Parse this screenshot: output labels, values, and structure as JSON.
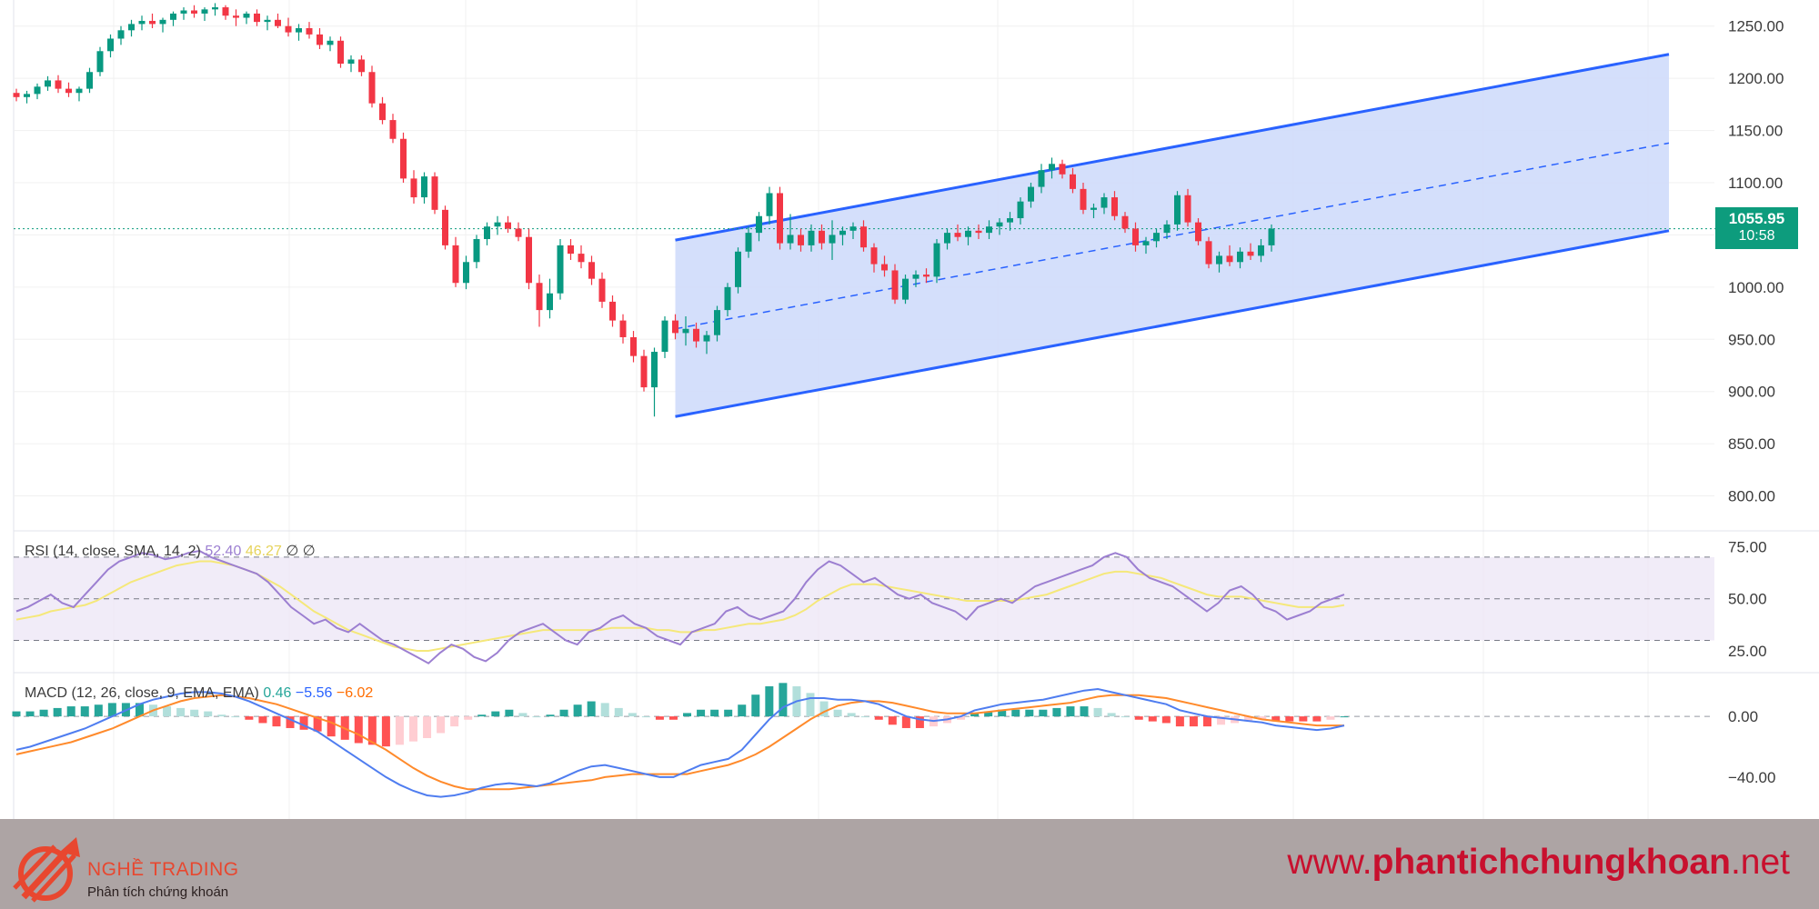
{
  "chart_data": [
    {
      "type": "candlestick",
      "ylim": [
        770,
        1275
      ],
      "y_ticks": [
        "1250.00",
        "1200.00",
        "1150.00",
        "1100.00",
        "1050.00",
        "1000.00",
        "950.00",
        "900.00",
        "850.00",
        "800.00"
      ],
      "last_price": "1055.95",
      "countdown": "10:58",
      "candles": [
        [
          1186,
          1190,
          1178,
          1182
        ],
        [
          1182,
          1188,
          1176,
          1185
        ],
        [
          1185,
          1195,
          1180,
          1192
        ],
        [
          1192,
          1202,
          1188,
          1198
        ],
        [
          1198,
          1203,
          1186,
          1190
        ],
        [
          1190,
          1196,
          1182,
          1186
        ],
        [
          1186,
          1192,
          1178,
          1190
        ],
        [
          1190,
          1210,
          1186,
          1206
        ],
        [
          1206,
          1230,
          1202,
          1226
        ],
        [
          1226,
          1242,
          1220,
          1238
        ],
        [
          1238,
          1250,
          1232,
          1246
        ],
        [
          1246,
          1256,
          1240,
          1252
        ],
        [
          1252,
          1260,
          1246,
          1255
        ],
        [
          1255,
          1262,
          1248,
          1252
        ],
        [
          1252,
          1258,
          1244,
          1256
        ],
        [
          1256,
          1264,
          1250,
          1262
        ],
        [
          1262,
          1268,
          1256,
          1265
        ],
        [
          1265,
          1270,
          1258,
          1262
        ],
        [
          1262,
          1268,
          1255,
          1266
        ],
        [
          1266,
          1272,
          1260,
          1268
        ],
        [
          1268,
          1270,
          1256,
          1260
        ],
        [
          1260,
          1266,
          1250,
          1258
        ],
        [
          1258,
          1264,
          1252,
          1262
        ],
        [
          1262,
          1266,
          1250,
          1254
        ],
        [
          1254,
          1260,
          1246,
          1256
        ],
        [
          1256,
          1262,
          1248,
          1250
        ],
        [
          1250,
          1258,
          1240,
          1244
        ],
        [
          1244,
          1252,
          1236,
          1248
        ],
        [
          1248,
          1254,
          1238,
          1242
        ],
        [
          1242,
          1248,
          1228,
          1232
        ],
        [
          1232,
          1240,
          1226,
          1236
        ],
        [
          1236,
          1240,
          1210,
          1214
        ],
        [
          1214,
          1222,
          1206,
          1218
        ],
        [
          1218,
          1222,
          1202,
          1206
        ],
        [
          1206,
          1212,
          1172,
          1176
        ],
        [
          1176,
          1182,
          1156,
          1160
        ],
        [
          1160,
          1166,
          1138,
          1142
        ],
        [
          1142,
          1148,
          1100,
          1104
        ],
        [
          1104,
          1112,
          1080,
          1086
        ],
        [
          1086,
          1110,
          1080,
          1106
        ],
        [
          1106,
          1110,
          1070,
          1074
        ],
        [
          1074,
          1078,
          1036,
          1040
        ],
        [
          1040,
          1048,
          1000,
          1004
        ],
        [
          1004,
          1030,
          998,
          1024
        ],
        [
          1024,
          1050,
          1018,
          1046
        ],
        [
          1046,
          1062,
          1040,
          1058
        ],
        [
          1058,
          1068,
          1050,
          1062
        ],
        [
          1062,
          1068,
          1052,
          1056
        ],
        [
          1056,
          1062,
          1044,
          1048
        ],
        [
          1048,
          1056,
          998,
          1004
        ],
        [
          1004,
          1012,
          962,
          978
        ],
        [
          978,
          1008,
          970,
          994
        ],
        [
          994,
          1046,
          988,
          1040
        ],
        [
          1040,
          1046,
          1026,
          1032
        ],
        [
          1032,
          1040,
          1018,
          1024
        ],
        [
          1024,
          1030,
          1002,
          1008
        ],
        [
          1008,
          1014,
          980,
          986
        ],
        [
          986,
          992,
          962,
          968
        ],
        [
          968,
          974,
          946,
          952
        ],
        [
          952,
          958,
          928,
          934
        ],
        [
          934,
          940,
          900,
          904
        ],
        [
          904,
          942,
          876,
          938
        ],
        [
          938,
          972,
          932,
          968
        ],
        [
          968,
          974,
          950,
          956
        ],
        [
          956,
          972,
          944,
          960
        ],
        [
          960,
          966,
          942,
          948
        ],
        [
          948,
          958,
          936,
          954
        ],
        [
          954,
          982,
          948,
          978
        ],
        [
          978,
          1004,
          972,
          1000
        ],
        [
          1000,
          1038,
          994,
          1034
        ],
        [
          1034,
          1058,
          1028,
          1052
        ],
        [
          1052,
          1072,
          1044,
          1068
        ],
        [
          1068,
          1096,
          1060,
          1090
        ],
        [
          1090,
          1096,
          1036,
          1042
        ],
        [
          1042,
          1070,
          1036,
          1050
        ],
        [
          1050,
          1056,
          1034,
          1040
        ],
        [
          1040,
          1060,
          1034,
          1054
        ],
        [
          1054,
          1060,
          1036,
          1042
        ],
        [
          1042,
          1064,
          1026,
          1050
        ],
        [
          1050,
          1058,
          1040,
          1054
        ],
        [
          1054,
          1062,
          1046,
          1058
        ],
        [
          1058,
          1064,
          1034,
          1038
        ],
        [
          1038,
          1042,
          1014,
          1022
        ],
        [
          1022,
          1030,
          1010,
          1016
        ],
        [
          1016,
          1022,
          984,
          988
        ],
        [
          988,
          1012,
          984,
          1008
        ],
        [
          1008,
          1016,
          1000,
          1012
        ],
        [
          1012,
          1018,
          1004,
          1010
        ],
        [
          1010,
          1046,
          1004,
          1042
        ],
        [
          1042,
          1056,
          1036,
          1052
        ],
        [
          1052,
          1060,
          1044,
          1048
        ],
        [
          1048,
          1058,
          1040,
          1054
        ],
        [
          1054,
          1060,
          1046,
          1052
        ],
        [
          1052,
          1064,
          1046,
          1058
        ],
        [
          1058,
          1066,
          1050,
          1062
        ],
        [
          1062,
          1072,
          1054,
          1066
        ],
        [
          1066,
          1086,
          1060,
          1082
        ],
        [
          1082,
          1100,
          1076,
          1096
        ],
        [
          1096,
          1118,
          1090,
          1112
        ],
        [
          1112,
          1124,
          1104,
          1118
        ],
        [
          1118,
          1122,
          1104,
          1108
        ],
        [
          1108,
          1114,
          1090,
          1094
        ],
        [
          1094,
          1100,
          1070,
          1074
        ],
        [
          1074,
          1080,
          1066,
          1076
        ],
        [
          1076,
          1090,
          1070,
          1086
        ],
        [
          1086,
          1092,
          1064,
          1068
        ],
        [
          1068,
          1072,
          1052,
          1056
        ],
        [
          1056,
          1062,
          1034,
          1040
        ],
        [
          1040,
          1048,
          1032,
          1044
        ],
        [
          1044,
          1056,
          1038,
          1052
        ],
        [
          1052,
          1064,
          1046,
          1060
        ],
        [
          1060,
          1092,
          1054,
          1088
        ],
        [
          1088,
          1094,
          1058,
          1062
        ],
        [
          1062,
          1066,
          1040,
          1044
        ],
        [
          1044,
          1048,
          1018,
          1022
        ],
        [
          1022,
          1034,
          1014,
          1030
        ],
        [
          1030,
          1040,
          1020,
          1024
        ],
        [
          1024,
          1038,
          1018,
          1034
        ],
        [
          1034,
          1042,
          1026,
          1030
        ],
        [
          1030,
          1046,
          1024,
          1040
        ],
        [
          1040,
          1060,
          1034,
          1056
        ]
      ],
      "channel": {
        "upper": [
          [
            63,
            1045
          ],
          [
            158,
            1223
          ]
        ],
        "lower": [
          [
            63,
            876
          ],
          [
            158,
            1054
          ]
        ],
        "mid": [
          [
            63,
            960
          ],
          [
            158,
            1138
          ]
        ]
      }
    },
    {
      "type": "line",
      "name": "RSI",
      "legend": [
        "RSI (14, close, SMA, 14, 2)",
        "52.40",
        "46.27",
        "∅",
        "∅"
      ],
      "y_ticks": [
        "75.00",
        "50.00",
        "25.00"
      ],
      "ylim": [
        18,
        80
      ],
      "band": [
        30,
        70
      ],
      "rsi": [
        44,
        46,
        49,
        52,
        48,
        46,
        52,
        58,
        64,
        68,
        70,
        72,
        71,
        69,
        70,
        72,
        73,
        70,
        68,
        66,
        64,
        62,
        58,
        52,
        46,
        42,
        38,
        40,
        36,
        34,
        38,
        34,
        30,
        28,
        25,
        22,
        19,
        24,
        28,
        26,
        22,
        20,
        24,
        30,
        34,
        36,
        38,
        34,
        30,
        28,
        34,
        36,
        40,
        42,
        38,
        36,
        32,
        30,
        28,
        34,
        36,
        38,
        44,
        46,
        42,
        40,
        42,
        44,
        50,
        58,
        64,
        68,
        66,
        62,
        58,
        60,
        56,
        52,
        50,
        52,
        48,
        46,
        44,
        40,
        46,
        48,
        50,
        48,
        52,
        56,
        58,
        60,
        62,
        64,
        66,
        70,
        72,
        70,
        64,
        60,
        58,
        56,
        52,
        48,
        44,
        48,
        54,
        56,
        52,
        46,
        44,
        40,
        42,
        44,
        48,
        50,
        52
      ],
      "signal": [
        40,
        41,
        42,
        44,
        45,
        46,
        47,
        49,
        52,
        55,
        58,
        60,
        62,
        64,
        66,
        67,
        68,
        68,
        67,
        66,
        64,
        62,
        59,
        56,
        52,
        48,
        44,
        41,
        38,
        35,
        33,
        31,
        29,
        27,
        26,
        25,
        25,
        26,
        27,
        28,
        29,
        30,
        31,
        32,
        33,
        34,
        35,
        35,
        35,
        35,
        35,
        35,
        36,
        36,
        36,
        36,
        35,
        35,
        34,
        34,
        35,
        35,
        36,
        37,
        38,
        38,
        39,
        40,
        42,
        45,
        49,
        52,
        55,
        57,
        57,
        57,
        56,
        55,
        54,
        53,
        52,
        51,
        50,
        49,
        49,
        49,
        49,
        49,
        50,
        51,
        52,
        54,
        56,
        58,
        60,
        62,
        63,
        63,
        62,
        61,
        60,
        58,
        56,
        54,
        52,
        51,
        51,
        51,
        50,
        49,
        48,
        47,
        46,
        46,
        46,
        46,
        47
      ]
    },
    {
      "type": "bar+line",
      "name": "MACD",
      "legend": [
        "MACD (12, 26, close, 9, EMA, EMA)",
        "0.46",
        "−5.56",
        "−6.02"
      ],
      "y_ticks": [
        "0.00",
        "−40.00"
      ],
      "ylim": [
        -58,
        24
      ],
      "macd": [
        -22,
        -20,
        -17,
        -14,
        -11,
        -8,
        -4,
        0,
        4,
        8,
        11,
        13,
        15,
        16,
        16,
        15,
        13,
        10,
        6,
        2,
        -2,
        -6,
        -10,
        -16,
        -22,
        -28,
        -34,
        -40,
        -45,
        -49,
        -52,
        -53,
        -52,
        -50,
        -47,
        -45,
        -44,
        -45,
        -46,
        -44,
        -40,
        -36,
        -33,
        -32,
        -34,
        -36,
        -38,
        -40,
        -40,
        -36,
        -32,
        -30,
        -28,
        -22,
        -12,
        -2,
        6,
        10,
        12,
        12,
        11,
        11,
        10,
        8,
        4,
        0,
        -2,
        -3,
        -2,
        0,
        4,
        6,
        8,
        9,
        10,
        11,
        13,
        15,
        17,
        18,
        16,
        14,
        12,
        10,
        8,
        4,
        2,
        0,
        -1,
        -2,
        -3,
        -4,
        -6,
        -7,
        -8,
        -9,
        -8,
        -6
      ],
      "signal": [
        -25,
        -23,
        -21,
        -19,
        -17,
        -14,
        -11,
        -8,
        -4,
        0,
        4,
        7,
        10,
        12,
        13,
        14,
        13,
        12,
        10,
        8,
        5,
        2,
        -1,
        -4,
        -8,
        -12,
        -17,
        -22,
        -28,
        -34,
        -39,
        -43,
        -46,
        -48,
        -48,
        -48,
        -48,
        -47,
        -46,
        -45,
        -44,
        -43,
        -42,
        -40,
        -39,
        -38,
        -38,
        -38,
        -38,
        -38,
        -36,
        -34,
        -32,
        -29,
        -25,
        -20,
        -14,
        -8,
        -2,
        3,
        7,
        9,
        10,
        10,
        9,
        7,
        5,
        3,
        2,
        2,
        2,
        3,
        4,
        5,
        6,
        7,
        8,
        9,
        11,
        13,
        14,
        14,
        14,
        13,
        12,
        10,
        8,
        6,
        4,
        2,
        0,
        -2,
        -3,
        -4,
        -5,
        -6,
        -6,
        -6
      ]
    }
  ],
  "footer": {
    "brand": "NGHỀ TRADING",
    "tagline": "Phân tích chứng khoán",
    "site_pre": "www.",
    "site_mid": "phantichchungkhoan",
    "site_post": ".net"
  }
}
